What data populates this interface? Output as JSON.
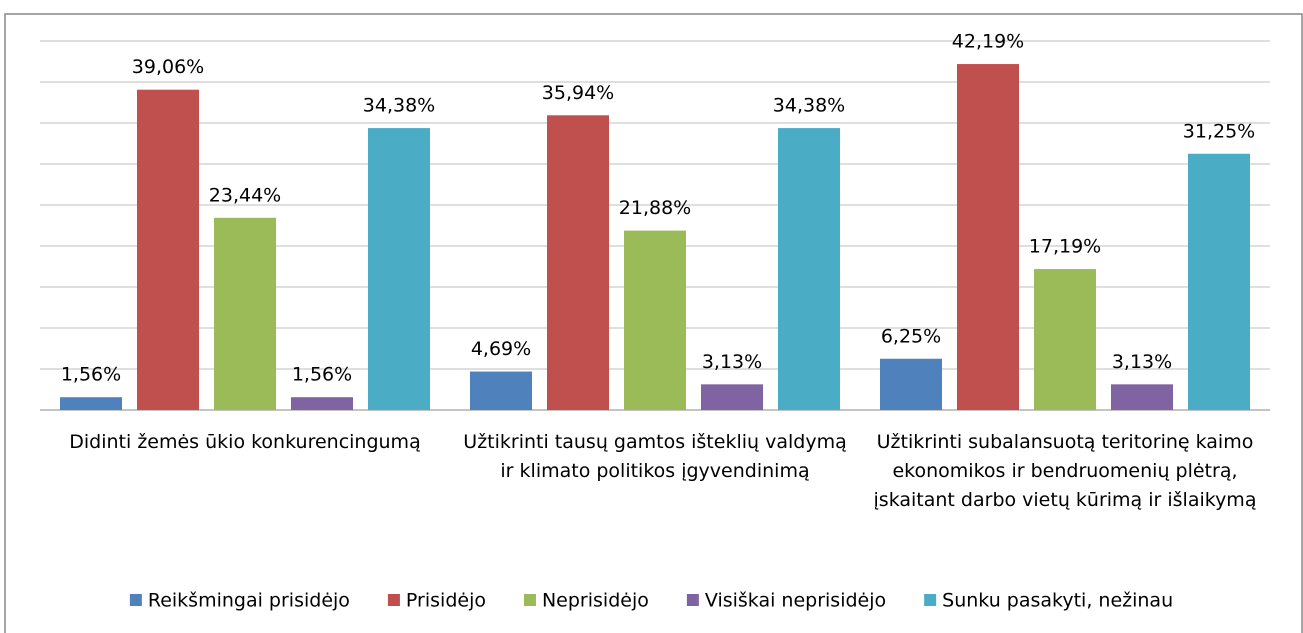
{
  "chart_data": {
    "type": "bar",
    "categories": [
      "Didinti žemės ūkio konkurencingumą",
      "Užtikrinti tausų gamtos išteklių valdymą ir klimato politikos įgyvendinimą",
      "Užtikrinti subalansuotą teritorinę kaimo ekonomikos ir bendruomenių plėtrą, įskaitant darbo vietų kūrimą ir išlaikymą"
    ],
    "series": [
      {
        "name": "Reikšmingai prisidėjo",
        "color": "#4f81bd",
        "values": [
          1.56,
          4.69,
          6.25
        ],
        "value_labels": [
          "1,56%",
          "4,69%",
          "6,25%"
        ]
      },
      {
        "name": "Prisidėjo",
        "color": "#c0504d",
        "values": [
          39.06,
          35.94,
          42.19
        ],
        "value_labels": [
          "39,06%",
          "35,94%",
          "42,19%"
        ]
      },
      {
        "name": "Neprisidėjo",
        "color": "#9bbb59",
        "values": [
          23.44,
          21.88,
          17.19
        ],
        "value_labels": [
          "23,44%",
          "21,88%",
          "17,19%"
        ]
      },
      {
        "name": "Visiškai neprisidėjo",
        "color": "#8064a2",
        "values": [
          1.56,
          3.13,
          3.13
        ],
        "value_labels": [
          "1,56%",
          "3,13%",
          "3,13%"
        ]
      },
      {
        "name": "Sunku pasakyti, nežinau",
        "color": "#4bacc6",
        "values": [
          34.38,
          34.38,
          31.25
        ],
        "value_labels": [
          "34,38%",
          "34,38%",
          "31,25%"
        ]
      }
    ],
    "ylim": [
      0,
      45
    ],
    "yticks": [
      0,
      5,
      10,
      15,
      20,
      25,
      30,
      35,
      40,
      45
    ],
    "grid": true,
    "legend": "bottom"
  }
}
